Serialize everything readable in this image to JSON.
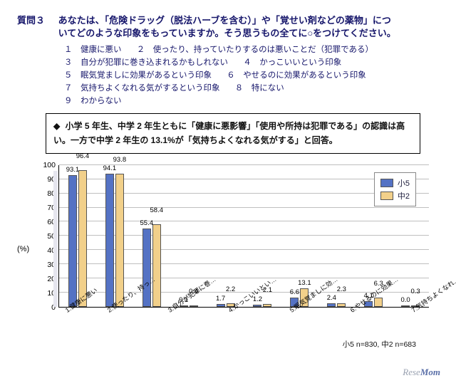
{
  "question": {
    "number": "質問３",
    "text_line1": "あなたは、「危険ドラッグ（脱法ハーブを含む）」や「覚せい剤などの薬物」につ",
    "text_line2": "いてどのような印象をもっていますか。そう思うもの全てに○をつけてください。"
  },
  "options": [
    "１　健康に悪い",
    "２　使ったり、持っていたりするのは悪いことだ（犯罪である）",
    "３　自分が犯罪に巻き込まれるかもしれない",
    "４　かっこいいという印象",
    "５　眠気覚ましに効果があるという印象",
    "６　やせるのに効果があるという印象",
    "７　気持ちよくなれる気がするという印象",
    "８　特にない",
    "９　わからない"
  ],
  "summary": "小学 5 年生、中学 2 年生ともに「健康に悪影響」「使用や所持は犯罪である」の認識は高い。一方で中学 2 年生の 13.1%が「気持ちよくなれる気がする」と回答。",
  "chart": {
    "type": "bar",
    "y_label": "(%)",
    "y_ticks": [
      0,
      10,
      20,
      30,
      40,
      50,
      60,
      70,
      80,
      90,
      100
    ],
    "ylim": [
      0,
      100
    ],
    "series": [
      {
        "name": "小5",
        "color": "#5472c4"
      },
      {
        "name": "中2",
        "color": "#f2d08a"
      }
    ],
    "categories": [
      "1.健康に悪い",
      "2.使ったり、持っ…",
      "3.自分が犯罪に巻…",
      "4.かっこいいとい…",
      "5.眠気覚ましに効…",
      "6.やせるのに効果…",
      "7.気持ちよくなれ…",
      "8.特にない",
      "9.わからない",
      "(無回答)"
    ],
    "values_a": [
      93.1,
      94.1,
      55.4,
      0.1,
      1.7,
      1.2,
      6.6,
      2.4,
      4.1,
      0.0
    ],
    "values_b": [
      96.4,
      93.8,
      58.4,
      0.4,
      2.2,
      2.1,
      13.1,
      2.3,
      6.3,
      0.3
    ],
    "grid_color": "#bfbfbf",
    "background_color": "#ffffff",
    "legend_position": "top-right"
  },
  "footer": "小5 n=830, 中2 n=683",
  "watermark": {
    "a": "Rese",
    "b": "Mom"
  }
}
